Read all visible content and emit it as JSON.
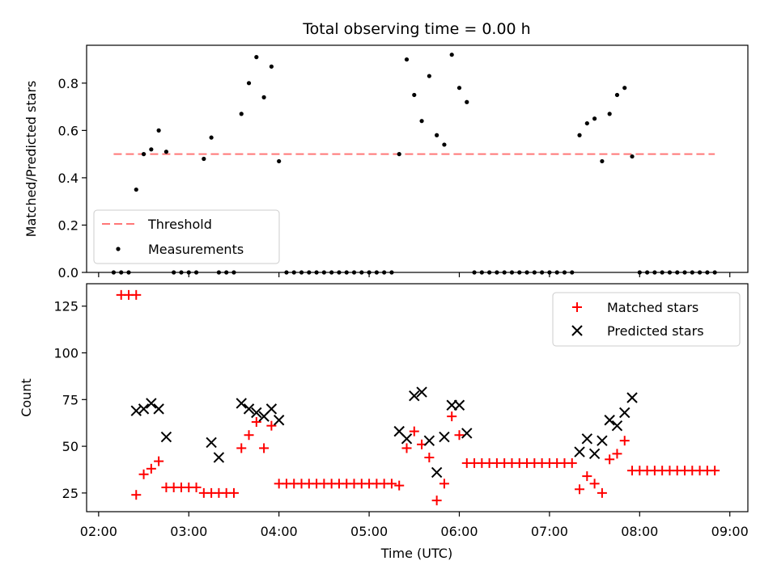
{
  "chart_data": {
    "type": "scatter",
    "title": "Total observing time = 0.00 h",
    "xlabel": "Time (UTC)",
    "x_ticks": [
      "02:00",
      "03:00",
      "04:00",
      "05:00",
      "06:00",
      "07:00",
      "08:00",
      "09:00"
    ],
    "xlim": [
      "01:52",
      "09:12"
    ],
    "panels": [
      {
        "name": "ratio",
        "ylabel": "Matched/Predicted stars",
        "ylim": [
          0.0,
          0.96
        ],
        "y_ticks": [
          0.0,
          0.2,
          0.4,
          0.6,
          0.8
        ],
        "legend_position": "lower-left",
        "threshold": {
          "name": "Threshold",
          "value": 0.5,
          "color": "#ff7777",
          "x_start": "02:10",
          "x_end": "08:50"
        },
        "series": [
          {
            "name": "Measurements",
            "color": "#000000",
            "marker": "dot",
            "points": [
              [
                "02:10",
                0.0
              ],
              [
                "02:15",
                0.0
              ],
              [
                "02:20",
                0.0
              ],
              [
                "02:25",
                0.35
              ],
              [
                "02:30",
                0.5
              ],
              [
                "02:35",
                0.52
              ],
              [
                "02:40",
                0.6
              ],
              [
                "02:45",
                0.51
              ],
              [
                "02:50",
                0.0
              ],
              [
                "02:55",
                0.0
              ],
              [
                "03:00",
                0.0
              ],
              [
                "03:05",
                0.0
              ],
              [
                "03:10",
                0.48
              ],
              [
                "03:15",
                0.57
              ],
              [
                "03:20",
                0.0
              ],
              [
                "03:25",
                0.0
              ],
              [
                "03:30",
                0.0
              ],
              [
                "03:35",
                0.67
              ],
              [
                "03:40",
                0.8
              ],
              [
                "03:45",
                0.91
              ],
              [
                "03:50",
                0.74
              ],
              [
                "03:55",
                0.87
              ],
              [
                "04:00",
                0.47
              ],
              [
                "04:05",
                0.0
              ],
              [
                "04:10",
                0.0
              ],
              [
                "04:15",
                0.0
              ],
              [
                "04:20",
                0.0
              ],
              [
                "04:25",
                0.0
              ],
              [
                "04:30",
                0.0
              ],
              [
                "04:35",
                0.0
              ],
              [
                "04:40",
                0.0
              ],
              [
                "04:45",
                0.0
              ],
              [
                "04:50",
                0.0
              ],
              [
                "04:55",
                0.0
              ],
              [
                "05:00",
                0.0
              ],
              [
                "05:05",
                0.0
              ],
              [
                "05:10",
                0.0
              ],
              [
                "05:15",
                0.0
              ],
              [
                "05:20",
                0.5
              ],
              [
                "05:25",
                0.9
              ],
              [
                "05:30",
                0.75
              ],
              [
                "05:35",
                0.64
              ],
              [
                "05:40",
                0.83
              ],
              [
                "05:45",
                0.58
              ],
              [
                "05:50",
                0.54
              ],
              [
                "05:55",
                0.92
              ],
              [
                "06:00",
                0.78
              ],
              [
                "06:05",
                0.72
              ],
              [
                "06:10",
                0.0
              ],
              [
                "06:15",
                0.0
              ],
              [
                "06:20",
                0.0
              ],
              [
                "06:25",
                0.0
              ],
              [
                "06:30",
                0.0
              ],
              [
                "06:35",
                0.0
              ],
              [
                "06:40",
                0.0
              ],
              [
                "06:45",
                0.0
              ],
              [
                "06:50",
                0.0
              ],
              [
                "06:55",
                0.0
              ],
              [
                "07:00",
                0.0
              ],
              [
                "07:05",
                0.0
              ],
              [
                "07:10",
                0.0
              ],
              [
                "07:15",
                0.0
              ],
              [
                "07:20",
                0.58
              ],
              [
                "07:25",
                0.63
              ],
              [
                "07:30",
                0.65
              ],
              [
                "07:35",
                0.47
              ],
              [
                "07:40",
                0.67
              ],
              [
                "07:45",
                0.75
              ],
              [
                "07:50",
                0.78
              ],
              [
                "07:55",
                0.49
              ],
              [
                "08:00",
                0.0
              ],
              [
                "08:05",
                0.0
              ],
              [
                "08:10",
                0.0
              ],
              [
                "08:15",
                0.0
              ],
              [
                "08:20",
                0.0
              ],
              [
                "08:25",
                0.0
              ],
              [
                "08:30",
                0.0
              ],
              [
                "08:35",
                0.0
              ],
              [
                "08:40",
                0.0
              ],
              [
                "08:45",
                0.0
              ],
              [
                "08:50",
                0.0
              ]
            ]
          }
        ]
      },
      {
        "name": "count",
        "ylabel": "Count",
        "ylim": [
          15,
          137
        ],
        "y_ticks": [
          25,
          50,
          75,
          100,
          125
        ],
        "legend_position": "top-right",
        "series": [
          {
            "name": "Matched stars",
            "color": "#ff0000",
            "marker": "plus",
            "points": [
              [
                "02:15",
                131
              ],
              [
                "02:20",
                131
              ],
              [
                "02:25",
                131
              ],
              [
                "02:25",
                24
              ],
              [
                "02:30",
                35
              ],
              [
                "02:35",
                38
              ],
              [
                "02:40",
                42
              ],
              [
                "02:45",
                28
              ],
              [
                "02:50",
                28
              ],
              [
                "02:55",
                28
              ],
              [
                "03:00",
                28
              ],
              [
                "03:05",
                28
              ],
              [
                "03:10",
                25
              ],
              [
                "03:15",
                25
              ],
              [
                "03:20",
                25
              ],
              [
                "03:25",
                25
              ],
              [
                "03:30",
                25
              ],
              [
                "03:35",
                49
              ],
              [
                "03:40",
                56
              ],
              [
                "03:45",
                63
              ],
              [
                "03:50",
                49
              ],
              [
                "03:55",
                61
              ],
              [
                "04:00",
                30
              ],
              [
                "04:05",
                30
              ],
              [
                "04:10",
                30
              ],
              [
                "04:15",
                30
              ],
              [
                "04:20",
                30
              ],
              [
                "04:25",
                30
              ],
              [
                "04:30",
                30
              ],
              [
                "04:35",
                30
              ],
              [
                "04:40",
                30
              ],
              [
                "04:45",
                30
              ],
              [
                "04:50",
                30
              ],
              [
                "04:55",
                30
              ],
              [
                "05:00",
                30
              ],
              [
                "05:05",
                30
              ],
              [
                "05:10",
                30
              ],
              [
                "05:15",
                30
              ],
              [
                "05:20",
                29
              ],
              [
                "05:25",
                49
              ],
              [
                "05:30",
                58
              ],
              [
                "05:35",
                51
              ],
              [
                "05:40",
                44
              ],
              [
                "05:45",
                21
              ],
              [
                "05:50",
                30
              ],
              [
                "05:55",
                66
              ],
              [
                "06:00",
                56
              ],
              [
                "06:05",
                41
              ],
              [
                "06:10",
                41
              ],
              [
                "06:15",
                41
              ],
              [
                "06:20",
                41
              ],
              [
                "06:25",
                41
              ],
              [
                "06:30",
                41
              ],
              [
                "06:35",
                41
              ],
              [
                "06:40",
                41
              ],
              [
                "06:45",
                41
              ],
              [
                "06:50",
                41
              ],
              [
                "06:55",
                41
              ],
              [
                "07:00",
                41
              ],
              [
                "07:05",
                41
              ],
              [
                "07:10",
                41
              ],
              [
                "07:15",
                41
              ],
              [
                "07:20",
                27
              ],
              [
                "07:25",
                34
              ],
              [
                "07:30",
                30
              ],
              [
                "07:35",
                25
              ],
              [
                "07:40",
                43
              ],
              [
                "07:45",
                46
              ],
              [
                "07:50",
                53
              ],
              [
                "07:55",
                37
              ],
              [
                "08:00",
                37
              ],
              [
                "08:05",
                37
              ],
              [
                "08:10",
                37
              ],
              [
                "08:15",
                37
              ],
              [
                "08:20",
                37
              ],
              [
                "08:25",
                37
              ],
              [
                "08:30",
                37
              ],
              [
                "08:35",
                37
              ],
              [
                "08:40",
                37
              ],
              [
                "08:45",
                37
              ],
              [
                "08:50",
                37
              ]
            ]
          },
          {
            "name": "Predicted stars",
            "color": "#000000",
            "marker": "x",
            "points": [
              [
                "02:25",
                69
              ],
              [
                "02:30",
                70
              ],
              [
                "02:35",
                73
              ],
              [
                "02:40",
                70
              ],
              [
                "02:45",
                55
              ],
              [
                "03:15",
                52
              ],
              [
                "03:20",
                44
              ],
              [
                "03:35",
                73
              ],
              [
                "03:40",
                70
              ],
              [
                "03:45",
                68
              ],
              [
                "03:50",
                66
              ],
              [
                "03:55",
                70
              ],
              [
                "04:00",
                64
              ],
              [
                "05:20",
                58
              ],
              [
                "05:25",
                54
              ],
              [
                "05:30",
                77
              ],
              [
                "05:35",
                79
              ],
              [
                "05:40",
                53
              ],
              [
                "05:45",
                36
              ],
              [
                "05:50",
                55
              ],
              [
                "05:55",
                72
              ],
              [
                "06:00",
                72
              ],
              [
                "06:05",
                57
              ],
              [
                "07:20",
                47
              ],
              [
                "07:25",
                54
              ],
              [
                "07:30",
                46
              ],
              [
                "07:35",
                53
              ],
              [
                "07:40",
                64
              ],
              [
                "07:45",
                61
              ],
              [
                "07:50",
                68
              ],
              [
                "07:55",
                76
              ]
            ]
          }
        ]
      }
    ]
  }
}
